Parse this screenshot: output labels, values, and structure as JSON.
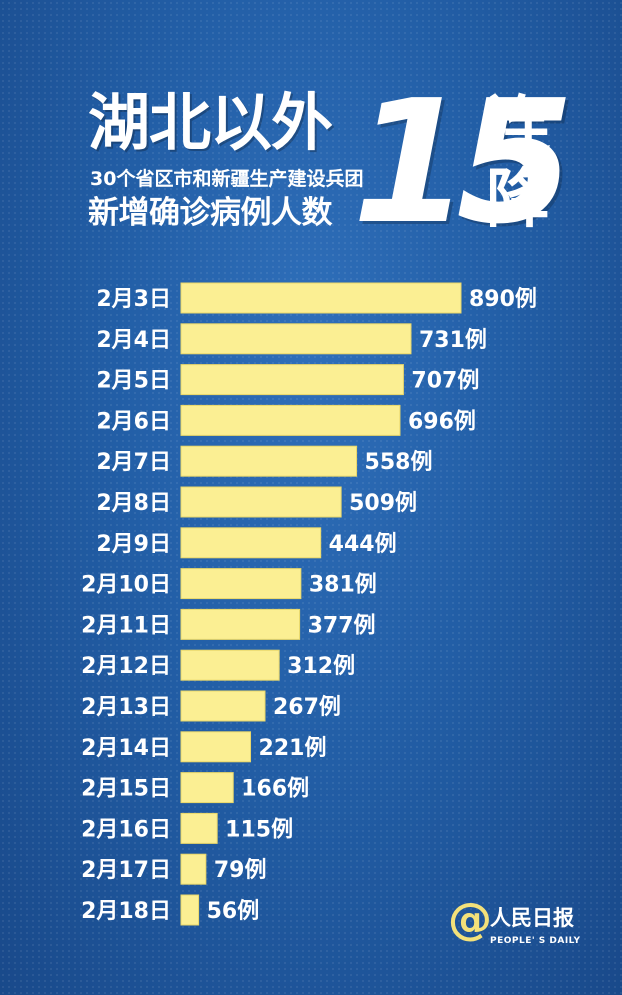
{
  "header": {
    "title_main": "湖北以外",
    "subtitle_1": "30个省区市和新疆生产建设兵团",
    "subtitle_2": "新增确诊病例人数",
    "big_number": "15",
    "title_lian": "连",
    "title_jiang": "降"
  },
  "logo": {
    "at": "@",
    "name": "人民日报",
    "english": "PEOPLE' S DAILY"
  },
  "colors": {
    "bar": "#fbef93",
    "bar_stroke": "#e9d76a",
    "text": "#ffffff"
  },
  "chart_data": {
    "type": "bar",
    "orientation": "horizontal",
    "value_suffix": "例",
    "categories": [
      "2月3日",
      "2月4日",
      "2月5日",
      "2月6日",
      "2月7日",
      "2月8日",
      "2月9日",
      "2月10日",
      "2月11日",
      "2月12日",
      "2月13日",
      "2月14日",
      "2月15日",
      "2月16日",
      "2月17日",
      "2月18日"
    ],
    "values": [
      890,
      731,
      707,
      696,
      558,
      509,
      444,
      381,
      377,
      312,
      267,
      221,
      166,
      115,
      79,
      56
    ],
    "title": "",
    "xlabel": "",
    "ylabel": ""
  }
}
